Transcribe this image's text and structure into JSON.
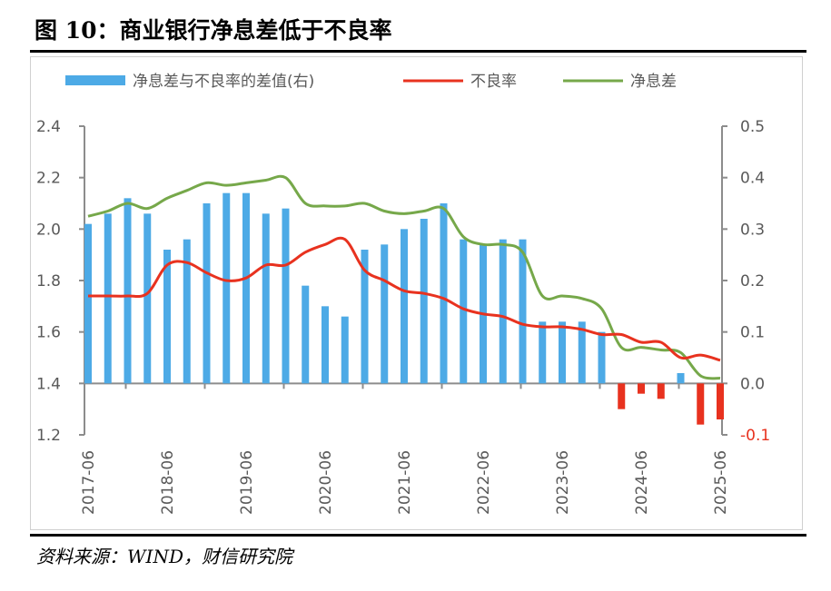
{
  "title": "图 10：商业银行净息差低于不良率",
  "source": "资料来源：WIND，财信研究院",
  "chart_data": {
    "type": "bar+line",
    "categories": [
      "2017-06",
      "2017-09",
      "2017-12",
      "2018-03",
      "2018-06",
      "2018-09",
      "2018-12",
      "2019-03",
      "2019-06",
      "2019-09",
      "2019-12",
      "2020-03",
      "2020-06",
      "2020-09",
      "2020-12",
      "2021-03",
      "2021-06",
      "2021-09",
      "2021-12",
      "2022-03",
      "2022-06",
      "2022-09",
      "2022-12",
      "2023-03",
      "2023-06",
      "2023-09",
      "2023-12",
      "2024-03",
      "2024-06",
      "2024-09",
      "2024-12",
      "2025-03",
      "2025-06"
    ],
    "x_tick_labels": [
      "2017-06",
      "2018-06",
      "2019-06",
      "2020-06",
      "2021-06",
      "2022-06",
      "2023-06",
      "2024-06",
      "2025-06"
    ],
    "left_axis": {
      "ylim": [
        1.2,
        2.4
      ],
      "ticks": [
        "1.2",
        "1.4",
        "1.6",
        "1.8",
        "2.0",
        "2.2",
        "2.4"
      ]
    },
    "right_axis": {
      "ylim": [
        -0.1,
        0.5
      ],
      "ticks": [
        "-0.1",
        "0.0",
        "0.1",
        "0.2",
        "0.3",
        "0.4",
        "0.5"
      ]
    },
    "series": [
      {
        "name": "净息差与不良率的差值(右)",
        "type": "bar",
        "axis": "right",
        "color": "#4DAAE6",
        "negative_color": "#E8321F",
        "values": [
          0.31,
          0.33,
          0.36,
          0.33,
          0.26,
          0.28,
          0.35,
          0.37,
          0.37,
          0.33,
          0.34,
          0.19,
          0.15,
          0.13,
          0.26,
          0.27,
          0.3,
          0.32,
          0.35,
          0.28,
          0.27,
          0.28,
          0.28,
          0.12,
          0.12,
          0.12,
          0.1,
          -0.05,
          -0.02,
          -0.03,
          0.02,
          -0.08,
          -0.07
        ]
      },
      {
        "name": "不良率",
        "type": "line",
        "axis": "left",
        "color": "#E8321F",
        "values": [
          1.74,
          1.74,
          1.74,
          1.75,
          1.86,
          1.87,
          1.83,
          1.8,
          1.81,
          1.86,
          1.86,
          1.91,
          1.94,
          1.96,
          1.84,
          1.8,
          1.76,
          1.75,
          1.73,
          1.69,
          1.67,
          1.66,
          1.63,
          1.62,
          1.62,
          1.61,
          1.59,
          1.59,
          1.56,
          1.56,
          1.5,
          1.51,
          1.49
        ]
      },
      {
        "name": "净息差",
        "type": "line",
        "axis": "left",
        "color": "#76A84A",
        "values": [
          2.05,
          2.07,
          2.1,
          2.08,
          2.12,
          2.15,
          2.18,
          2.17,
          2.18,
          2.19,
          2.2,
          2.1,
          2.09,
          2.09,
          2.1,
          2.07,
          2.06,
          2.07,
          2.08,
          1.97,
          1.94,
          1.94,
          1.91,
          1.74,
          1.74,
          1.73,
          1.69,
          1.54,
          1.54,
          1.53,
          1.52,
          1.43,
          1.42
        ]
      }
    ],
    "legend_position": "top",
    "grid": false,
    "negative_tick_color": "#E8321F"
  }
}
